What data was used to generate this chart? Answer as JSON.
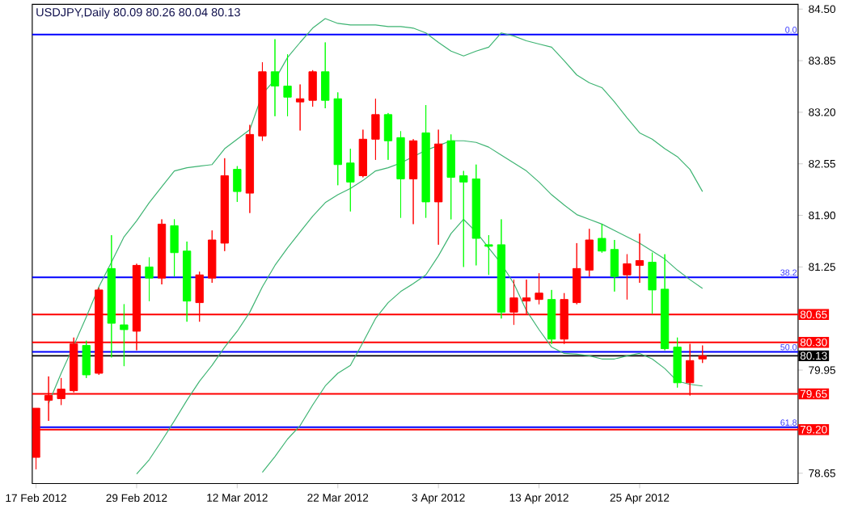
{
  "chart_data": {
    "type": "candlestick",
    "title": "USDJPY,Daily  80.09 80.26 80.04 80.13",
    "categories": [
      "17 Feb 2012",
      null,
      null,
      null,
      null,
      null,
      null,
      null,
      "29 Feb 2012",
      null,
      null,
      null,
      null,
      null,
      null,
      null,
      "12 Mar 2012",
      null,
      null,
      null,
      null,
      null,
      null,
      null,
      "22 Mar 2012",
      null,
      null,
      null,
      null,
      null,
      null,
      null,
      "3 Apr 2012",
      null,
      null,
      null,
      null,
      null,
      null,
      null,
      "13 Apr 2012",
      null,
      null,
      null,
      null,
      null,
      null,
      null,
      "25 Apr 2012",
      null,
      null,
      null,
      null,
      null
    ],
    "ohlc": [
      [
        78.85,
        79.47,
        78.7,
        79.47
      ],
      [
        79.57,
        79.87,
        79.31,
        79.63
      ],
      [
        79.59,
        79.85,
        79.51,
        79.71
      ],
      [
        79.69,
        80.36,
        79.67,
        80.28
      ],
      [
        80.26,
        80.32,
        79.85,
        79.89
      ],
      [
        79.91,
        80.99,
        79.89,
        80.96
      ],
      [
        81.23,
        81.65,
        80.11,
        80.54
      ],
      [
        80.52,
        80.78,
        80.0,
        80.46
      ],
      [
        80.44,
        81.29,
        80.2,
        81.27
      ],
      [
        81.25,
        81.37,
        80.82,
        81.11
      ],
      [
        81.11,
        81.85,
        81.03,
        81.79
      ],
      [
        81.77,
        81.85,
        81.13,
        81.43
      ],
      [
        81.45,
        81.57,
        80.56,
        80.82
      ],
      [
        80.8,
        81.19,
        80.56,
        81.15
      ],
      [
        81.11,
        81.71,
        81.05,
        81.59
      ],
      [
        81.55,
        82.62,
        81.45,
        82.4
      ],
      [
        82.48,
        82.52,
        82.07,
        82.2
      ],
      [
        82.18,
        83.04,
        81.93,
        82.92
      ],
      [
        82.9,
        83.83,
        82.84,
        83.71
      ],
      [
        83.71,
        84.12,
        83.15,
        83.53
      ],
      [
        83.53,
        83.93,
        83.15,
        83.39
      ],
      [
        83.33,
        83.55,
        82.97,
        83.37
      ],
      [
        83.35,
        83.73,
        83.27,
        83.71
      ],
      [
        83.71,
        84.08,
        83.25,
        83.35
      ],
      [
        83.37,
        83.45,
        82.28,
        82.54
      ],
      [
        82.56,
        82.74,
        81.95,
        82.32
      ],
      [
        82.4,
        82.98,
        82.38,
        82.86
      ],
      [
        82.86,
        83.37,
        82.6,
        83.17
      ],
      [
        83.17,
        83.19,
        82.6,
        82.84
      ],
      [
        82.88,
        82.96,
        81.87,
        82.36
      ],
      [
        82.36,
        82.86,
        81.79,
        82.84
      ],
      [
        82.94,
        83.29,
        81.87,
        82.07
      ],
      [
        82.07,
        82.98,
        81.53,
        82.8
      ],
      [
        82.84,
        82.92,
        81.85,
        82.38
      ],
      [
        82.4,
        82.46,
        81.25,
        82.32
      ],
      [
        82.36,
        82.54,
        81.27,
        81.61
      ],
      [
        81.53,
        81.65,
        81.15,
        81.51
      ],
      [
        81.53,
        81.85,
        80.6,
        80.68
      ],
      [
        80.68,
        81.09,
        80.52,
        80.86
      ],
      [
        80.82,
        81.09,
        80.66,
        80.86
      ],
      [
        80.84,
        81.17,
        80.78,
        80.92
      ],
      [
        80.84,
        80.96,
        80.28,
        80.34
      ],
      [
        80.34,
        80.92,
        80.28,
        80.84
      ],
      [
        80.8,
        81.55,
        80.78,
        81.23
      ],
      [
        81.21,
        81.73,
        81.13,
        81.59
      ],
      [
        81.61,
        81.79,
        81.43,
        81.45
      ],
      [
        81.47,
        81.59,
        80.94,
        81.13
      ],
      [
        81.15,
        81.41,
        80.84,
        81.29
      ],
      [
        81.27,
        81.67,
        81.05,
        81.33
      ],
      [
        81.31,
        81.43,
        80.66,
        80.96
      ],
      [
        80.97,
        81.41,
        80.2,
        80.22
      ],
      [
        80.24,
        80.36,
        79.73,
        79.79
      ],
      [
        79.79,
        80.28,
        79.63,
        80.07
      ],
      [
        80.09,
        80.26,
        80.04,
        80.13
      ]
    ],
    "colors": [
      "#ff0000",
      "#ff0000",
      "#ff0000",
      "#ff0000",
      "#00ff00",
      "#ff0000",
      "#00ff00",
      "#00ff00",
      "#ff0000",
      "#00ff00",
      "#ff0000",
      "#00ff00",
      "#00ff00",
      "#ff0000",
      "#ff0000",
      "#ff0000",
      "#00ff00",
      "#ff0000",
      "#ff0000",
      "#00ff00",
      "#00ff00",
      "#ff0000",
      "#ff0000",
      "#00ff00",
      "#00ff00",
      "#00ff00",
      "#ff0000",
      "#ff0000",
      "#00ff00",
      "#00ff00",
      "#ff0000",
      "#00ff00",
      "#ff0000",
      "#00ff00",
      "#00ff00",
      "#00ff00",
      "#00ff00",
      "#00ff00",
      "#ff0000",
      "#ff0000",
      "#ff0000",
      "#00ff00",
      "#ff0000",
      "#ff0000",
      "#ff0000",
      "#00ff00",
      "#00ff00",
      "#ff0000",
      "#ff0000",
      "#00ff00",
      "#00ff00",
      "#00ff00",
      "#ff0000",
      "#ff0000"
    ],
    "series": [
      {
        "type": "line",
        "color": "#3cb371",
        "values": [
          null,
          79.53,
          79.91,
          80.26,
          80.62,
          81.0,
          81.31,
          81.63,
          81.83,
          82.06,
          82.26,
          82.46,
          82.5,
          82.52,
          82.54,
          82.74,
          82.86,
          82.98,
          83.43,
          83.61,
          83.89,
          84.08,
          84.26,
          84.38,
          84.32,
          84.3,
          84.3,
          84.3,
          84.28,
          84.28,
          84.26,
          84.2,
          84.08,
          83.97,
          83.91,
          83.97,
          84.02,
          84.2,
          84.16,
          84.1,
          84.06,
          84.02,
          83.85,
          83.67,
          83.57,
          83.51,
          83.33,
          83.13,
          82.94,
          82.86,
          82.74,
          82.64,
          82.48,
          82.2
        ]
      },
      {
        "type": "line",
        "color": "#3cb371",
        "values": [
          null,
          null,
          null,
          null,
          null,
          null,
          null,
          null,
          78.64,
          78.82,
          79.06,
          79.31,
          79.57,
          79.81,
          80.01,
          80.24,
          80.44,
          80.68,
          81.0,
          81.27,
          81.49,
          81.69,
          81.89,
          82.06,
          82.16,
          82.24,
          82.34,
          82.46,
          82.5,
          82.56,
          82.64,
          82.72,
          82.78,
          82.84,
          82.84,
          82.82,
          82.76,
          82.66,
          82.56,
          82.46,
          82.32,
          82.16,
          82.03,
          81.91,
          81.85,
          81.79,
          81.71,
          81.63,
          81.55,
          81.45,
          81.35,
          81.21,
          81.09,
          80.98
        ]
      },
      {
        "type": "line",
        "color": "#3cb371",
        "values": [
          null,
          null,
          null,
          null,
          null,
          null,
          null,
          null,
          null,
          null,
          null,
          null,
          null,
          null,
          null,
          null,
          null,
          null,
          78.66,
          78.86,
          79.08,
          79.25,
          79.51,
          79.75,
          79.91,
          80.01,
          80.3,
          80.6,
          80.8,
          80.94,
          81.04,
          81.15,
          81.39,
          81.67,
          81.85,
          81.69,
          81.49,
          81.29,
          81.04,
          80.7,
          80.46,
          80.24,
          80.16,
          80.15,
          80.13,
          80.09,
          80.09,
          80.13,
          80.16,
          80.09,
          79.97,
          79.81,
          79.77,
          79.75
        ]
      }
    ],
    "ylim": [
      78.52,
      84.56
    ],
    "yticks": [
      {
        "value": 84.5,
        "label": "84.50"
      },
      83.85,
      {
        "value": 83.2,
        "label": "83.20"
      },
      82.55,
      {
        "value": 81.9,
        "label": "81.90"
      },
      81.25,
      79.95,
      78.65
    ],
    "ref_lines": [
      {
        "axis": "y",
        "value": 84.18,
        "color": "#0000ff"
      },
      {
        "axis": "y",
        "value": 81.12,
        "color": "#0000ff"
      },
      {
        "axis": "y",
        "value": 80.18,
        "color": "#0000ff"
      },
      {
        "axis": "y",
        "value": 79.23,
        "color": "#0000ff"
      },
      {
        "axis": "y",
        "value": 80.65,
        "label": "80.65",
        "color": "#ff0000"
      },
      {
        "axis": "y",
        "value": 80.3,
        "label": "80.30",
        "color": "#ff0000"
      },
      {
        "axis": "y",
        "value": 79.65,
        "label": "79.65",
        "color": "#ff0000"
      },
      {
        "axis": "y",
        "value": 79.2,
        "label": "79.20",
        "color": "#ff0000"
      },
      {
        "axis": "y",
        "value": 80.13,
        "label": "80.13",
        "color": "#000000"
      }
    ],
    "annotations": [
      {
        "text": "0.0",
        "y": 84.18
      },
      {
        "text": "38.2",
        "y": 81.12
      },
      {
        "text": "50.0",
        "y": 80.18
      },
      {
        "text": "61.8",
        "y": 79.23
      }
    ]
  }
}
